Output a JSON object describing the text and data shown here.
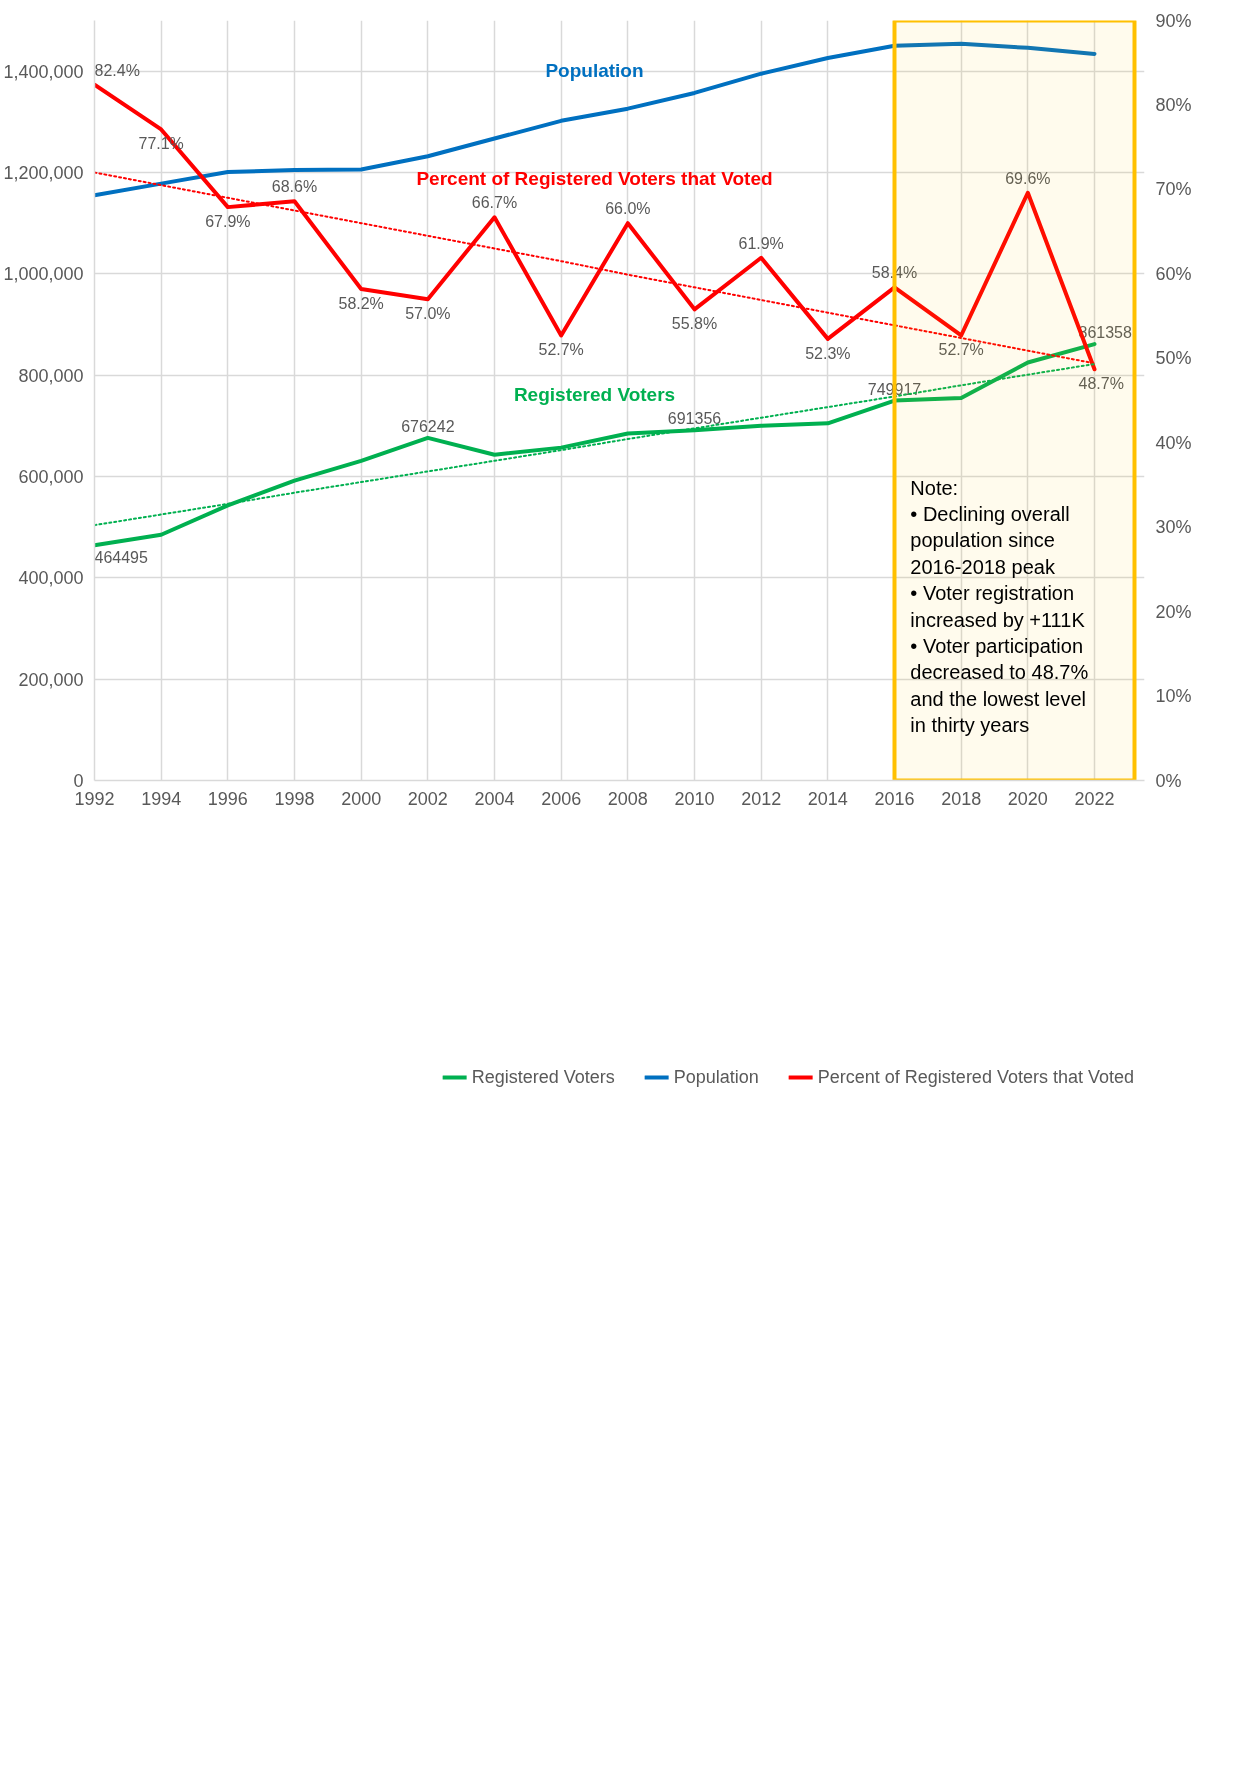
{
  "chart_data": {
    "type": "line",
    "x": [
      1992,
      1994,
      1996,
      1998,
      2000,
      2002,
      2004,
      2006,
      2008,
      2010,
      2012,
      2014,
      2016,
      2018,
      2020,
      2022
    ],
    "xlim": [
      1992,
      2023.5
    ],
    "xticks": [
      1992,
      1994,
      1996,
      1998,
      2000,
      2002,
      2004,
      2006,
      2008,
      2010,
      2012,
      2014,
      2016,
      2018,
      2020,
      2022
    ],
    "ylim": [
      0,
      1500000
    ],
    "yticks": [
      0,
      {
        "value": 200000,
        "label": "200,000"
      },
      {
        "value": 400000,
        "label": "400,000"
      },
      {
        "value": 600000,
        "label": "600,000"
      },
      {
        "value": 800000,
        "label": "800,000"
      },
      {
        "value": 1000000,
        "label": "1,000,000"
      },
      {
        "value": 1200000,
        "label": "1,200,000"
      },
      {
        "value": 1400000,
        "label": "1,400,000"
      }
    ],
    "y2lim": [
      0,
      90
    ],
    "y2ticks": [
      {
        "value": 0,
        "label": "0%"
      },
      {
        "value": 10,
        "label": "10%"
      },
      {
        "value": 20,
        "label": "20%"
      },
      {
        "value": 30,
        "label": "30%"
      },
      {
        "value": 40,
        "label": "40%"
      },
      {
        "value": 50,
        "label": "50%"
      },
      {
        "value": 60,
        "label": "60%"
      },
      {
        "value": 70,
        "label": "70%"
      },
      {
        "value": 80,
        "label": "80%"
      },
      {
        "value": 90,
        "label": "90%"
      }
    ],
    "series": [
      {
        "name": "Registered Voters",
        "color": "#00b050",
        "values": [
          464495,
          485000,
          543000,
          592000,
          631000,
          676242,
          643000,
          657000,
          685000,
          691356,
          700000,
          705000,
          749917,
          755000,
          825000,
          861358
        ],
        "value_labels": [
          "464495",
          null,
          null,
          null,
          null,
          "676242",
          null,
          null,
          null,
          "691356",
          null,
          null,
          "749917",
          null,
          null,
          "861358"
        ]
      },
      {
        "name": "Population",
        "color": "#0070c0",
        "values": [
          1155000,
          1178000,
          1201000,
          1205000,
          1206000,
          1232000,
          1267000,
          1302000,
          1326000,
          1357000,
          1395000,
          1426000,
          1450000,
          1454000,
          1446000,
          1434000
        ]
      },
      {
        "name": "Percent of Registered Voters that Voted",
        "color": "#ff0000",
        "axis": "y2",
        "values": [
          82.4,
          77.1,
          67.9,
          68.6,
          58.2,
          57.0,
          66.7,
          52.7,
          66.0,
          55.8,
          61.9,
          52.3,
          58.4,
          52.7,
          69.6,
          48.7
        ],
        "value_labels": [
          "82.4%",
          "77.1%",
          "67.9%",
          "68.6%",
          "58.2%",
          "57.0%",
          "66.7%",
          "52.7%",
          "66.0%",
          "55.8%",
          "61.9%",
          "52.3%",
          "58.4%",
          "52.7%",
          "69.6%",
          "48.7%"
        ]
      },
      {
        "type": "line",
        "color": "#ff0000",
        "axis": "y2",
        "line_style": "dotted",
        "values": [
          72.0,
          70.5,
          69.0,
          67.5,
          66.0,
          64.5,
          63.0,
          61.5,
          59.9,
          58.4,
          56.9,
          55.4,
          53.9,
          52.4,
          50.9,
          49.4
        ]
      },
      {
        "type": "line",
        "color": "#00b050",
        "line_style": "dotted",
        "values": [
          504000,
          525000,
          546000,
          568000,
          589000,
          610000,
          631000,
          652000,
          674000,
          695000,
          716000,
          737000,
          758000,
          780000,
          801000,
          822000
        ]
      }
    ],
    "bands": [
      {
        "axis": "x",
        "from": 2016,
        "to": 2023.2,
        "color": "#ffc000"
      }
    ],
    "annotations": [
      "Note:\n• Declining overall\npopulation since\n2016-2018 peak\n• Voter registration\nincreased by +111K\n• Voter participation\ndecreased to 48.7%\nand the lowest level\nin thirty years"
    ],
    "grid": true,
    "legend": "bottom"
  }
}
